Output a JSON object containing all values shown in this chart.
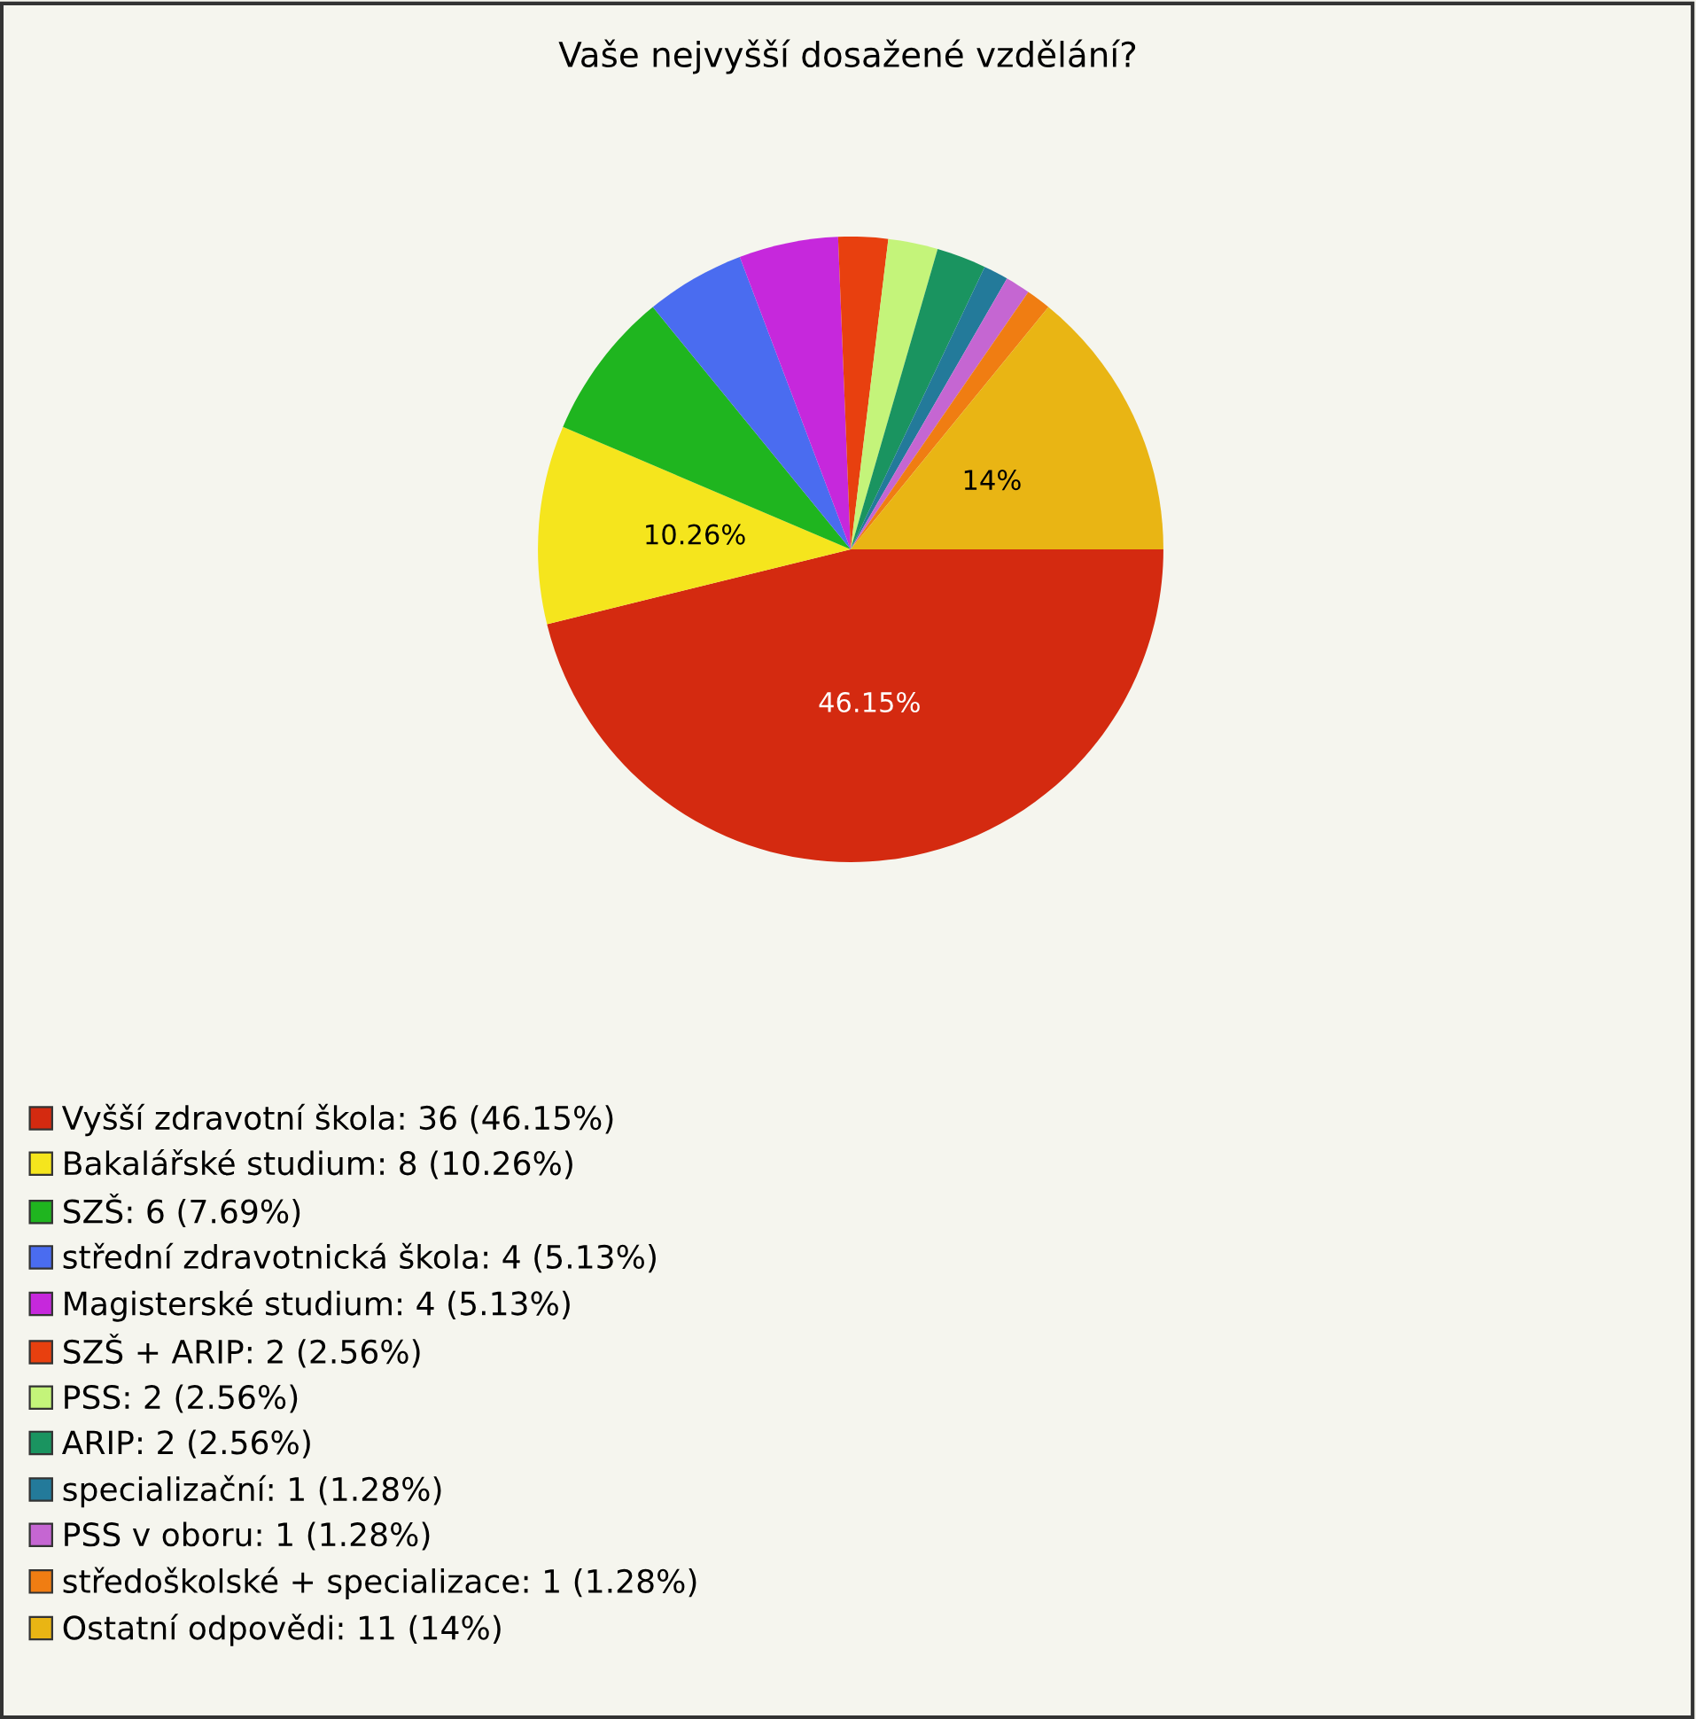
{
  "chart_data": {
    "type": "pie",
    "title": "Vaše nejvyšší dosažené vzdělání?",
    "categories": [
      "Vyšší zdravotní škola",
      "Bakalářské studium",
      "SZŠ",
      "střední zdravotnická škola",
      "Magisterské studium",
      "SZŠ + ARIP",
      "PSS",
      "ARIP",
      "specializační",
      "PSS v oboru",
      "středoškolské + specializace",
      "Ostatní odpovědi"
    ],
    "values": [
      36,
      8,
      6,
      4,
      4,
      2,
      2,
      2,
      1,
      1,
      1,
      11
    ],
    "value_labels": [
      "36 (46.15%)",
      "8 (10.26%)",
      "6 (7.69%)",
      "4 (5.13%)",
      "4 (5.13%)",
      "2 (2.56%)",
      "2 (2.56%)",
      "2 (2.56%)",
      "1 (1.28%)",
      "1 (1.28%)",
      "1 (1.28%)",
      "11 (14%)"
    ],
    "colors": [
      "#d42a10",
      "#f5e51d",
      "#1fb51f",
      "#4a6cf0",
      "#c628dc",
      "#e8400f",
      "#c4f47a",
      "#1a9460",
      "#237a9a",
      "#c566d2",
      "#f07d12",
      "#e9b514"
    ],
    "annotations": [
      {
        "text": "46.15%",
        "x": "Vyšší zdravotní škola"
      },
      {
        "text": "10.26%",
        "x": "Bakalářské studium"
      },
      {
        "text": "14%",
        "x": "Ostatní odpovědi"
      }
    ],
    "legend": "bottom left"
  }
}
